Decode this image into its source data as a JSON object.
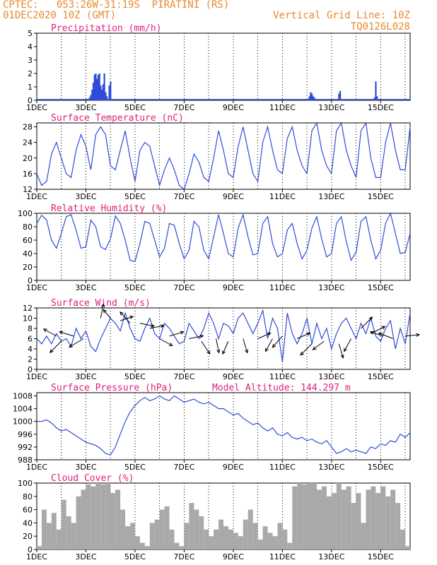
{
  "header": {
    "line1_left": "CPTEC:   053:26W-31:19S  PIRATINI (RS)",
    "line2_left": "01DEC2020 10Z (GMT)",
    "line1_right": "Vertical Grid Line: 10Z",
    "line2_right": "TQ0126L028",
    "accent_color": "#e8892c",
    "title_color": "#e0207a",
    "series_color": "#2f4bd8",
    "cloud_color": "#a9a9a9"
  },
  "x_axis": {
    "ticks": [
      "1DEC",
      "3DEC",
      "5DEC",
      "7DEC",
      "9DEC",
      "11DEC",
      "13DEC",
      "15DEC"
    ],
    "range_days": [
      0,
      15.2
    ]
  },
  "chart_data": [
    {
      "id": "precip",
      "type": "bar",
      "title": "Precipitation (mm/h)",
      "ylim": [
        0,
        5
      ],
      "yticks": [
        0,
        1,
        2,
        3,
        4,
        5
      ],
      "bars": [
        [
          2.15,
          0.2
        ],
        [
          2.2,
          0.4
        ],
        [
          2.25,
          0.8
        ],
        [
          2.3,
          1.3
        ],
        [
          2.35,
          1.9
        ],
        [
          2.4,
          2.0
        ],
        [
          2.45,
          1.6
        ],
        [
          2.5,
          1.9
        ],
        [
          2.55,
          2.0
        ],
        [
          2.6,
          1.1
        ],
        [
          2.65,
          0.8
        ],
        [
          2.7,
          1.2
        ],
        [
          2.75,
          2.0
        ],
        [
          2.8,
          0.6
        ],
        [
          2.85,
          0.3
        ],
        [
          2.95,
          1.1
        ],
        [
          3.0,
          1.4
        ],
        [
          11.1,
          0.3
        ],
        [
          11.15,
          0.6
        ],
        [
          11.2,
          0.5
        ],
        [
          11.25,
          0.3
        ],
        [
          11.3,
          0.2
        ],
        [
          12.3,
          0.5
        ],
        [
          12.35,
          0.7
        ],
        [
          13.75,
          0.2
        ],
        [
          13.8,
          1.4
        ],
        [
          13.85,
          0.3
        ]
      ]
    },
    {
      "id": "temp",
      "type": "line",
      "title": "Surface Temperature (nC)",
      "ylim": [
        12,
        29
      ],
      "yticks": [
        12,
        16,
        20,
        24,
        28
      ],
      "x": [
        0,
        0.2,
        0.4,
        0.6,
        0.8,
        1.0,
        1.2,
        1.4,
        1.6,
        1.8,
        2.0,
        2.2,
        2.4,
        2.6,
        2.8,
        3.0,
        3.2,
        3.4,
        3.6,
        3.8,
        4.0,
        4.2,
        4.4,
        4.6,
        4.8,
        5.0,
        5.2,
        5.4,
        5.6,
        5.8,
        6.0,
        6.2,
        6.4,
        6.6,
        6.8,
        7.0,
        7.2,
        7.4,
        7.6,
        7.8,
        8.0,
        8.2,
        8.4,
        8.6,
        8.8,
        9.0,
        9.2,
        9.4,
        9.6,
        9.8,
        10.0,
        10.2,
        10.4,
        10.6,
        10.8,
        11.0,
        11.2,
        11.4,
        11.6,
        11.8,
        12.0,
        12.2,
        12.4,
        12.6,
        12.8,
        13.0,
        13.2,
        13.4,
        13.6,
        13.8,
        14.0,
        14.2,
        14.4,
        14.6,
        14.8,
        15.0,
        15.2
      ],
      "y": [
        16,
        13,
        14,
        21,
        24,
        20,
        16,
        15,
        22,
        26,
        23,
        17,
        26,
        28,
        26,
        18,
        17,
        22,
        27,
        20,
        14,
        22,
        24,
        23,
        18,
        13,
        17,
        20,
        17,
        13,
        12,
        16,
        21,
        19,
        15,
        14,
        20,
        27,
        22,
        16,
        15,
        23,
        28,
        22,
        16,
        14,
        24,
        28,
        22,
        17,
        16,
        25,
        28,
        22,
        18,
        16,
        27,
        29,
        22,
        18,
        16,
        27,
        29,
        22,
        18,
        15,
        27,
        29,
        20,
        15,
        15,
        24,
        29,
        22,
        17,
        17,
        28
      ],
      "xlabel": "",
      "ylabel": ""
    },
    {
      "id": "rh",
      "type": "line",
      "title": "Relative Humidity (%)",
      "ylim": [
        0,
        100
      ],
      "yticks": [
        0,
        20,
        40,
        60,
        80,
        100
      ],
      "x": [
        0,
        0.2,
        0.4,
        0.6,
        0.8,
        1.0,
        1.2,
        1.4,
        1.6,
        1.8,
        2.0,
        2.2,
        2.4,
        2.6,
        2.8,
        3.0,
        3.2,
        3.4,
        3.6,
        3.8,
        4.0,
        4.2,
        4.4,
        4.6,
        4.8,
        5.0,
        5.2,
        5.4,
        5.6,
        5.8,
        6.0,
        6.2,
        6.4,
        6.6,
        6.8,
        7.0,
        7.2,
        7.4,
        7.6,
        7.8,
        8.0,
        8.2,
        8.4,
        8.6,
        8.8,
        9.0,
        9.2,
        9.4,
        9.6,
        9.8,
        10.0,
        10.2,
        10.4,
        10.6,
        10.8,
        11.0,
        11.2,
        11.4,
        11.6,
        11.8,
        12.0,
        12.2,
        12.4,
        12.6,
        12.8,
        13.0,
        13.2,
        13.4,
        13.6,
        13.8,
        14.0,
        14.2,
        14.4,
        14.6,
        14.8,
        15.0,
        15.2
      ],
      "y": [
        85,
        97,
        90,
        60,
        48,
        70,
        95,
        98,
        75,
        48,
        50,
        90,
        80,
        50,
        46,
        62,
        96,
        85,
        60,
        30,
        28,
        55,
        88,
        85,
        60,
        35,
        48,
        85,
        82,
        55,
        32,
        45,
        88,
        80,
        45,
        32,
        65,
        98,
        70,
        40,
        35,
        78,
        98,
        65,
        38,
        40,
        85,
        95,
        55,
        35,
        40,
        75,
        85,
        55,
        32,
        45,
        78,
        95,
        62,
        35,
        40,
        85,
        95,
        58,
        30,
        42,
        88,
        95,
        60,
        32,
        45,
        85,
        100,
        70,
        40,
        42,
        70
      ],
      "xlabel": "",
      "ylabel": ""
    },
    {
      "id": "wind",
      "type": "line",
      "title": "Surface Wind (m/s)",
      "ylim": [
        0,
        12
      ],
      "yticks": [
        0,
        2,
        4,
        6,
        8,
        10,
        12
      ],
      "x": [
        0,
        0.2,
        0.4,
        0.6,
        0.8,
        1.0,
        1.2,
        1.4,
        1.6,
        1.8,
        2.0,
        2.2,
        2.4,
        2.6,
        2.8,
        3.0,
        3.2,
        3.4,
        3.6,
        3.8,
        4.0,
        4.2,
        4.4,
        4.6,
        4.8,
        5.0,
        5.2,
        5.4,
        5.6,
        5.8,
        6.0,
        6.2,
        6.4,
        6.6,
        6.8,
        7.0,
        7.2,
        7.4,
        7.6,
        7.8,
        8.0,
        8.2,
        8.4,
        8.6,
        8.8,
        9.0,
        9.2,
        9.4,
        9.6,
        9.8,
        10.0,
        10.2,
        10.4,
        10.6,
        10.8,
        11.0,
        11.2,
        11.4,
        11.6,
        11.8,
        12.0,
        12.2,
        12.4,
        12.6,
        12.8,
        13.0,
        13.2,
        13.4,
        13.6,
        13.8,
        14.0,
        14.2,
        14.4,
        14.6,
        14.8,
        15.0,
        15.2
      ],
      "y": [
        6,
        5,
        6.5,
        5,
        7,
        5.5,
        6,
        4.5,
        8,
        6,
        7.5,
        4.5,
        3.5,
        6,
        8,
        10,
        9,
        7.5,
        11,
        8,
        6,
        5.5,
        8,
        10,
        7,
        6,
        9,
        8,
        6.5,
        5,
        5.5,
        9,
        7.5,
        6,
        8,
        11,
        9,
        6,
        9,
        8.5,
        7,
        10,
        11,
        9,
        7,
        9,
        11.5,
        6,
        10,
        8,
        1.5,
        11,
        7,
        5,
        7,
        10,
        5,
        9,
        6,
        8,
        4,
        7,
        9,
        10,
        8,
        6,
        9,
        7,
        10,
        6.5,
        5.5,
        8,
        9.5,
        4,
        8,
        5,
        11
      ]
    },
    {
      "id": "pressure",
      "type": "line",
      "title": "Surface Pressure (hPa)",
      "annotation": "Model Altitude: 144.297 m",
      "ylim": [
        988,
        1009
      ],
      "yticks": [
        988,
        992,
        996,
        1000,
        1004,
        1008
      ],
      "x": [
        0,
        0.2,
        0.4,
        0.6,
        0.8,
        1.0,
        1.2,
        1.4,
        1.6,
        1.8,
        2.0,
        2.2,
        2.4,
        2.6,
        2.8,
        3.0,
        3.2,
        3.4,
        3.6,
        3.8,
        4.0,
        4.2,
        4.4,
        4.6,
        4.8,
        5.0,
        5.2,
        5.4,
        5.6,
        5.8,
        6.0,
        6.2,
        6.4,
        6.6,
        6.8,
        7.0,
        7.2,
        7.4,
        7.6,
        7.8,
        8.0,
        8.2,
        8.4,
        8.6,
        8.8,
        9.0,
        9.2,
        9.4,
        9.6,
        9.8,
        10.0,
        10.2,
        10.4,
        10.6,
        10.8,
        11.0,
        11.2,
        11.4,
        11.6,
        11.8,
        12.0,
        12.2,
        12.4,
        12.6,
        12.8,
        13.0,
        13.2,
        13.4,
        13.6,
        13.8,
        14.0,
        14.2,
        14.4,
        14.6,
        14.8,
        15.0,
        15.2
      ],
      "y": [
        1000,
        1000,
        1000.5,
        999.5,
        998,
        997,
        997.5,
        996.5,
        995.5,
        994.5,
        993.5,
        993,
        992.5,
        991.5,
        990,
        989.5,
        992,
        996,
        1000,
        1003,
        1005,
        1006.5,
        1007.5,
        1006.5,
        1007,
        1008,
        1007,
        1006.5,
        1008,
        1007,
        1006,
        1006.5,
        1007,
        1006,
        1005.5,
        1006,
        1005,
        1004,
        1004,
        1003,
        1002,
        1002.5,
        1001,
        1000,
        999,
        999.5,
        998,
        997,
        998,
        996,
        995.5,
        996.5,
        995,
        994.5,
        995,
        994,
        994.5,
        993.5,
        993,
        994,
        992,
        990,
        990.5,
        991.5,
        990.5,
        991,
        990.5,
        990,
        992,
        991.5,
        993,
        992.5,
        994,
        993.5,
        996,
        995,
        996.5
      ],
      "xlabel": "",
      "ylabel": ""
    },
    {
      "id": "cloud",
      "type": "area",
      "title": "Cloud Cover (%)",
      "ylim": [
        0,
        100
      ],
      "yticks": [
        0,
        20,
        40,
        60,
        80,
        100
      ],
      "x": [
        0,
        0.2,
        0.4,
        0.6,
        0.8,
        1.0,
        1.2,
        1.4,
        1.6,
        1.8,
        2.0,
        2.2,
        2.4,
        2.6,
        2.8,
        3.0,
        3.2,
        3.4,
        3.6,
        3.8,
        4.0,
        4.2,
        4.4,
        4.6,
        4.8,
        5.0,
        5.2,
        5.4,
        5.6,
        5.8,
        6.0,
        6.2,
        6.4,
        6.6,
        6.8,
        7.0,
        7.2,
        7.4,
        7.6,
        7.8,
        8.0,
        8.2,
        8.4,
        8.6,
        8.8,
        9.0,
        9.2,
        9.4,
        9.6,
        9.8,
        10.0,
        10.2,
        10.4,
        10.6,
        10.8,
        11.0,
        11.2,
        11.4,
        11.6,
        11.8,
        12.0,
        12.2,
        12.4,
        12.6,
        12.8,
        13.0,
        13.2,
        13.4,
        13.6,
        13.8,
        14.0,
        14.2,
        14.4,
        14.6,
        14.8,
        15.0,
        15.2
      ],
      "y": [
        5,
        60,
        40,
        55,
        30,
        75,
        50,
        40,
        80,
        90,
        98,
        95,
        100,
        98,
        100,
        85,
        90,
        60,
        35,
        40,
        20,
        10,
        5,
        40,
        45,
        60,
        65,
        30,
        10,
        5,
        40,
        70,
        60,
        50,
        30,
        20,
        30,
        45,
        35,
        30,
        25,
        20,
        45,
        60,
        40,
        15,
        35,
        25,
        20,
        40,
        30,
        10,
        95,
        100,
        98,
        100,
        100,
        90,
        95,
        80,
        85,
        100,
        90,
        95,
        70,
        85,
        40,
        90,
        95,
        85,
        95,
        80,
        90,
        70,
        30,
        5,
        0
      ]
    }
  ],
  "wind_arrows": [
    [
      0.8,
      6.5,
      -0.9,
      0.5
    ],
    [
      1.0,
      5.5,
      -0.8,
      -0.8
    ],
    [
      1.5,
      6.5,
      -1.0,
      0.3
    ],
    [
      1.9,
      6,
      -1.0,
      -0.6
    ],
    [
      2.6,
      10,
      0.2,
      1.0
    ],
    [
      3.0,
      10,
      -0.5,
      0.6
    ],
    [
      3.4,
      9.5,
      0.9,
      0.3
    ],
    [
      3.8,
      9,
      -0.7,
      0.8
    ],
    [
      4.2,
      9,
      1.0,
      -0.2
    ],
    [
      4.6,
      8,
      1.0,
      0.2
    ],
    [
      5.0,
      6,
      0.9,
      -0.5
    ],
    [
      5.4,
      6.5,
      1.0,
      0.3
    ],
    [
      6.2,
      6,
      1.0,
      0.2
    ],
    [
      6.7,
      5.5,
      0.6,
      -0.9
    ],
    [
      7.3,
      6,
      0.2,
      -1.0
    ],
    [
      7.8,
      5.5,
      -0.4,
      -0.9
    ],
    [
      8.4,
      6,
      0.3,
      -1.0
    ],
    [
      9.0,
      6,
      0.9,
      0.4
    ],
    [
      9.6,
      6,
      -0.5,
      -0.9
    ],
    [
      10.0,
      6.5,
      -0.7,
      -0.8
    ],
    [
      10.6,
      6,
      0.9,
      0.4
    ],
    [
      11.2,
      5,
      -0.8,
      -0.8
    ],
    [
      11.7,
      5.5,
      -0.8,
      -0.6
    ],
    [
      12.3,
      5,
      0.3,
      -1.0
    ],
    [
      12.8,
      6,
      -0.5,
      -0.9
    ],
    [
      13.2,
      8,
      0.8,
      0.8
    ],
    [
      13.6,
      7,
      1.0,
      0.5
    ],
    [
      14.1,
      6.5,
      -0.9,
      0.3
    ],
    [
      14.5,
      6,
      -1.0,
      0.4
    ],
    [
      15.0,
      6.5,
      1.0,
      0.1
    ]
  ]
}
